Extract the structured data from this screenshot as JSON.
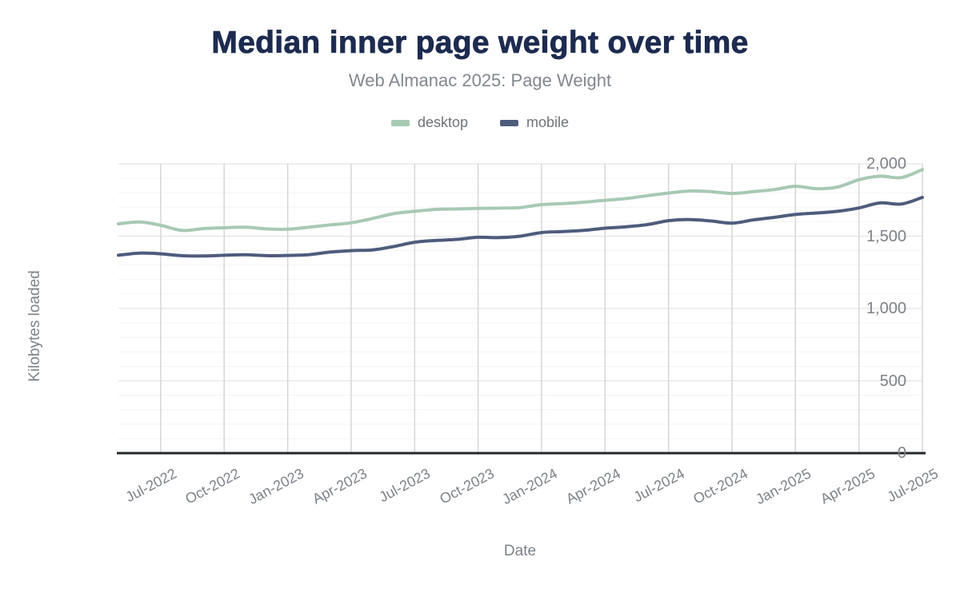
{
  "colors": {
    "title": "#1c2b4f",
    "subtitle": "#82878e",
    "legend_text": "#6d7379",
    "axis_label": "#7d8287",
    "gridline_vertical": "#d6d6d6",
    "gridline_major": "#e4e4e4",
    "gridline_minor": "#f3f3f3",
    "axis_line": "#24292e",
    "background": "#ffffff"
  },
  "chart_data": {
    "type": "line",
    "title": "Median inner page weight over time",
    "subtitle": "Web Almanac 2025: Page Weight",
    "xlabel": "Date",
    "ylabel": "Kilobytes loaded",
    "ylim": [
      0,
      2000
    ],
    "y_ticks": [
      0,
      500,
      1000,
      1500,
      2000
    ],
    "y_tick_labels": [
      "0",
      "500",
      "1,000",
      "1,500",
      "2,000"
    ],
    "grid": {
      "horizontal_major_step": 500,
      "horizontal_minor_step": 100,
      "vertical": "at quarterly ticks"
    },
    "legend_position": "top",
    "x": [
      "May-2022",
      "Jun-2022",
      "Jul-2022",
      "Aug-2022",
      "Sep-2022",
      "Oct-2022",
      "Nov-2022",
      "Dec-2022",
      "Jan-2023",
      "Feb-2023",
      "Mar-2023",
      "Apr-2023",
      "May-2023",
      "Jun-2023",
      "Jul-2023",
      "Aug-2023",
      "Sep-2023",
      "Oct-2023",
      "Nov-2023",
      "Dec-2023",
      "Jan-2024",
      "Feb-2024",
      "Mar-2024",
      "Apr-2024",
      "May-2024",
      "Jun-2024",
      "Jul-2024",
      "Aug-2024",
      "Sep-2024",
      "Oct-2024",
      "Nov-2024",
      "Dec-2024",
      "Jan-2025",
      "Feb-2025",
      "Mar-2025",
      "Apr-2025",
      "May-2025",
      "Jun-2025",
      "Jul-2025"
    ],
    "x_tick_labels": [
      "Jul-2022",
      "Oct-2022",
      "Jan-2023",
      "Apr-2023",
      "Jul-2023",
      "Oct-2023",
      "Jan-2024",
      "Apr-2024",
      "Jul-2024",
      "Oct-2024",
      "Jan-2025",
      "Apr-2025",
      "Jul-2025"
    ],
    "x_tick_indices": [
      2,
      5,
      8,
      11,
      14,
      17,
      20,
      23,
      26,
      29,
      32,
      35,
      38
    ],
    "series": [
      {
        "name": "desktop",
        "color": "#a7c9b4",
        "values": [
          1585,
          1598,
          1575,
          1540,
          1552,
          1558,
          1562,
          1550,
          1548,
          1562,
          1578,
          1592,
          1622,
          1655,
          1672,
          1685,
          1688,
          1692,
          1694,
          1698,
          1718,
          1725,
          1735,
          1748,
          1760,
          1780,
          1798,
          1812,
          1808,
          1795,
          1808,
          1822,
          1845,
          1828,
          1840,
          1890,
          1915,
          1905,
          1960
        ]
      },
      {
        "name": "mobile",
        "color": "#4e5c7c",
        "values": [
          1368,
          1383,
          1378,
          1365,
          1363,
          1368,
          1372,
          1365,
          1367,
          1372,
          1390,
          1400,
          1405,
          1428,
          1458,
          1470,
          1478,
          1492,
          1490,
          1500,
          1525,
          1532,
          1540,
          1555,
          1565,
          1580,
          1607,
          1615,
          1605,
          1590,
          1612,
          1630,
          1650,
          1660,
          1672,
          1695,
          1730,
          1722,
          1768
        ]
      }
    ]
  }
}
